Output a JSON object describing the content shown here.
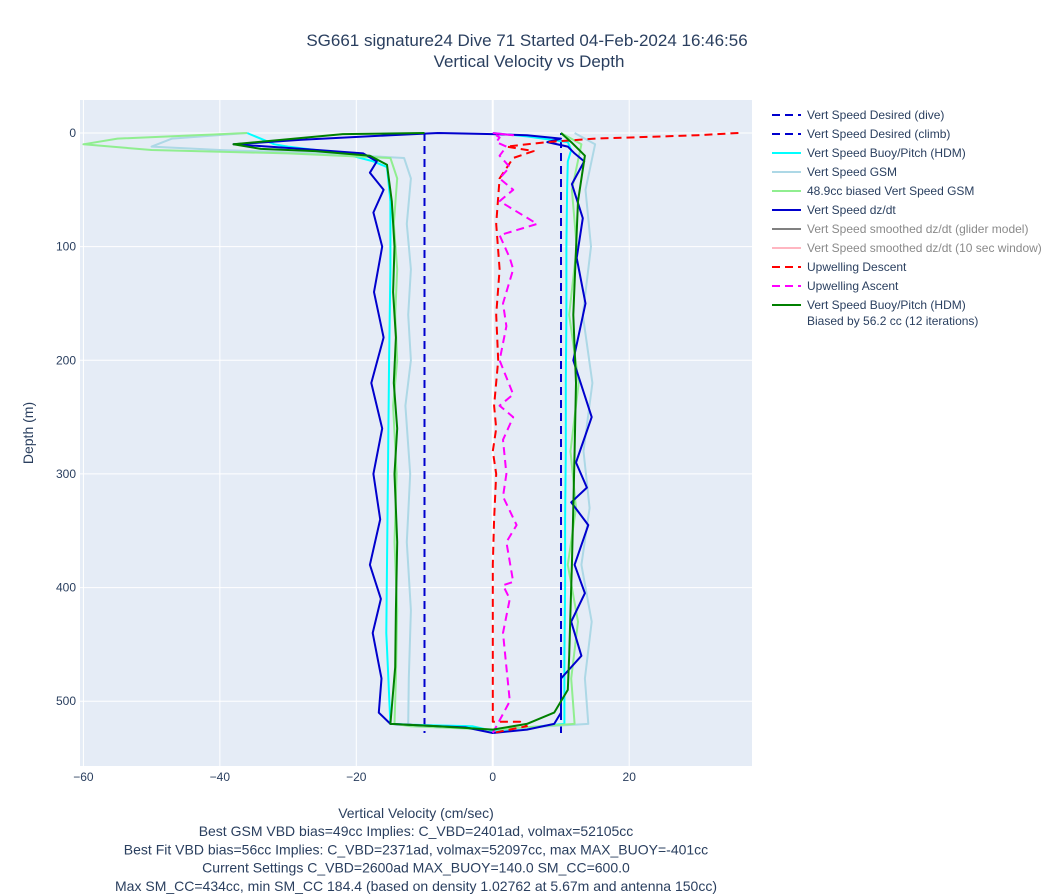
{
  "chart_data": {
    "type": "line",
    "title": "SG661 signature24 Dive 71 Started 04-Feb-2024 16:46:56",
    "subtitle": "Vertical Velocity vs Depth",
    "xlabel": "Vertical Velocity (cm/sec)",
    "ylabel": "Depth (m)",
    "xlim": [
      -60.5,
      38
    ],
    "ylim": [
      557,
      -29
    ],
    "y_reversed": true,
    "grid": true,
    "legend_position": "right",
    "x_ticks": [
      -60,
      -40,
      -20,
      0,
      20
    ],
    "x_tick_labels": [
      "−60",
      "−40",
      "−20",
      "0",
      "20"
    ],
    "y_ticks": [
      0,
      100,
      200,
      300,
      400,
      500
    ],
    "y_tick_labels": [
      "0",
      "100",
      "200",
      "300",
      "400",
      "500"
    ],
    "footnotes": [
      "Best GSM VBD bias=49cc Implies: C_VBD=2401ad, volmax=52105cc",
      "Best Fit VBD bias=56cc Implies: C_VBD=2371ad, volmax=52097cc, max MAX_BUOY=-401cc",
      "Current Settings C_VBD=2600ad MAX_BUOY=140.0 SM_CC=600.0",
      "Max SM_CC=434cc, min SM_CC 184.4 (based on density 1.02762 at 5.67m and antenna 150cc)"
    ],
    "series": [
      {
        "name": "Vert Speed Desired (dive)",
        "color": "#0000cd",
        "dash": "dash",
        "x": [
          -10,
          -10
        ],
        "y": [
          0,
          528
        ]
      },
      {
        "name": "Vert Speed Desired (climb)",
        "color": "#0000cd",
        "dash": "dash",
        "x": [
          10,
          10
        ],
        "y": [
          528,
          0
        ]
      },
      {
        "name": "Vert Speed Buoy/Pitch (HDM)",
        "color": "#00ffff",
        "dash": "solid",
        "x": [
          -36,
          -32,
          -30,
          -22,
          -17.5,
          -15.5,
          -15,
          -15,
          -15.2,
          -15.3,
          -15.4,
          -15.5,
          -15.6,
          -15,
          -10,
          -3,
          0,
          10.5,
          10.5,
          10.6,
          10.6,
          10.7,
          10.7,
          10.8,
          10.8,
          10.9,
          11,
          11.5,
          11,
          5,
          0
        ],
        "y": [
          0,
          10,
          12,
          18,
          25,
          30,
          60,
          120,
          200,
          260,
          320,
          380,
          440,
          520,
          521,
          522,
          526,
          520,
          460,
          400,
          340,
          280,
          220,
          160,
          100,
          50,
          25,
          15,
          8,
          3,
          0
        ]
      },
      {
        "name": "Vert Speed GSM",
        "color": "#add8e6",
        "dash": "solid",
        "x": [
          -36,
          -47,
          -50,
          -40,
          -25,
          -13,
          -12,
          -12.6,
          -12,
          -12.4,
          -12,
          -12.8,
          -12.1,
          -12.6,
          -12,
          -12.3,
          -12.4,
          -10,
          0,
          14,
          13.5,
          14.5,
          13,
          14.2,
          13.3,
          14.6,
          13.2,
          14.4,
          13.6,
          15,
          12
        ],
        "y": [
          0,
          5,
          12,
          15,
          18,
          22,
          40,
          80,
          120,
          160,
          200,
          240,
          300,
          360,
          420,
          480,
          520,
          522,
          525,
          520,
          480,
          430,
          380,
          330,
          280,
          220,
          160,
          100,
          50,
          10,
          0
        ]
      },
      {
        "name": "48.9cc biased Vert Speed GSM",
        "color": "#90ee90",
        "dash": "solid",
        "x": [
          -36,
          -55,
          -60,
          -50,
          -30,
          -15,
          -14,
          -14.5,
          -14,
          -14.3,
          -14,
          -14.6,
          -14.1,
          -14.4,
          -14,
          -14.2,
          -14.4,
          -12,
          0,
          12,
          11.5,
          12.5,
          11,
          12.2,
          11.4,
          12.6,
          11.2,
          12.3,
          11.6,
          13,
          10
        ],
        "y": [
          0,
          5,
          10,
          15,
          18,
          22,
          40,
          80,
          120,
          160,
          200,
          240,
          300,
          360,
          420,
          480,
          520,
          522,
          525,
          520,
          480,
          430,
          380,
          330,
          280,
          220,
          160,
          100,
          50,
          10,
          0
        ]
      },
      {
        "name": "Vert Speed dz/dt",
        "color": "#0000cd",
        "dash": "solid",
        "x": [
          -8,
          -15,
          -28,
          -38,
          -28,
          -19,
          -17,
          -18,
          -16,
          -17.5,
          -16.2,
          -17.4,
          -16,
          -17.8,
          -16.2,
          -17.5,
          -16.5,
          -18,
          -16.4,
          -17.6,
          -16.3,
          -16.7,
          -15,
          -8,
          -4,
          0,
          5,
          9,
          10,
          10,
          13,
          11.5,
          13.5,
          12,
          14,
          11.5,
          13.8,
          12.2,
          14.5,
          11.8,
          13.6,
          12.3,
          13.2,
          11.6,
          13.4,
          12,
          11,
          8,
          10,
          5,
          0,
          -8
        ],
        "y": [
          0,
          2,
          6,
          10,
          14,
          18,
          25,
          35,
          50,
          70,
          100,
          140,
          180,
          220,
          260,
          300,
          340,
          380,
          410,
          440,
          480,
          510,
          520,
          522,
          523,
          528,
          525,
          520,
          510,
          480,
          460,
          430,
          405,
          380,
          345,
          325,
          312,
          290,
          250,
          200,
          150,
          110,
          75,
          45,
          25,
          18,
          12,
          8,
          5,
          2,
          1,
          0
        ]
      },
      {
        "name": "Vert Speed smoothed dz/dt (glider model)",
        "color": "#808080",
        "dash": "solid",
        "x": [],
        "y": [],
        "dimmed": true
      },
      {
        "name": "Vert Speed smoothed dz/dt (10 sec window)",
        "color": "#ffb6c1",
        "dash": "solid",
        "x": [],
        "y": [],
        "dimmed": true
      },
      {
        "name": "Upwelling Descent",
        "color": "#ff0000",
        "dash": "dash",
        "x": [
          36,
          30,
          25,
          15,
          8,
          2,
          6,
          3,
          1,
          0.5,
          1,
          0.5,
          0.8,
          0.2,
          0.5,
          0,
          0.5,
          0.2,
          0,
          0,
          0,
          0,
          0,
          4,
          5,
          0
        ],
        "y": [
          0,
          2,
          3,
          5,
          8,
          12,
          16,
          22,
          40,
          80,
          120,
          160,
          200,
          240,
          260,
          280,
          300,
          340,
          380,
          420,
          460,
          500,
          518,
          518,
          522,
          528
        ]
      },
      {
        "name": "Upwelling Ascent",
        "color": "#ff00ff",
        "dash": "dash",
        "x": [
          0,
          2.5,
          2,
          1.5,
          2.5,
          1.5,
          3,
          2,
          3.5,
          1.5,
          2,
          1.5,
          3,
          1,
          3,
          1,
          2,
          1.5,
          3,
          2.5,
          1,
          6.5,
          1,
          3,
          1,
          2.5,
          1,
          2,
          0.5,
          1,
          0,
          3,
          0
        ],
        "y": [
          528,
          500,
          470,
          440,
          410,
          398,
          395,
          360,
          345,
          320,
          300,
          270,
          250,
          240,
          230,
          200,
          170,
          150,
          120,
          110,
          90,
          80,
          60,
          50,
          40,
          30,
          20,
          12,
          8,
          4,
          0,
          2,
          0
        ]
      },
      {
        "name": "Vert Speed Buoy/Pitch (HDM)\nBiased by 56.2 cc (12 iterations)",
        "color": "#008000",
        "dash": "solid",
        "x": [
          -10,
          -22,
          -38,
          -34,
          -26,
          -18,
          -15.5,
          -14.8,
          -14.4,
          -14.6,
          -14.2,
          -14.5,
          -14,
          -14.4,
          -14,
          -14.2,
          -14.3,
          -15,
          -8,
          0,
          5,
          9,
          11,
          11.2,
          11.4,
          11.6,
          11.8,
          12,
          12.2,
          11.8,
          12.5,
          13.5,
          11.5,
          10
        ],
        "y": [
          0,
          1,
          10,
          14,
          16,
          20,
          28,
          60,
          100,
          140,
          180,
          220,
          260,
          300,
          360,
          420,
          470,
          520,
          522,
          525,
          520,
          510,
          490,
          460,
          420,
          380,
          330,
          280,
          220,
          160,
          60,
          20,
          8,
          0
        ]
      }
    ]
  }
}
